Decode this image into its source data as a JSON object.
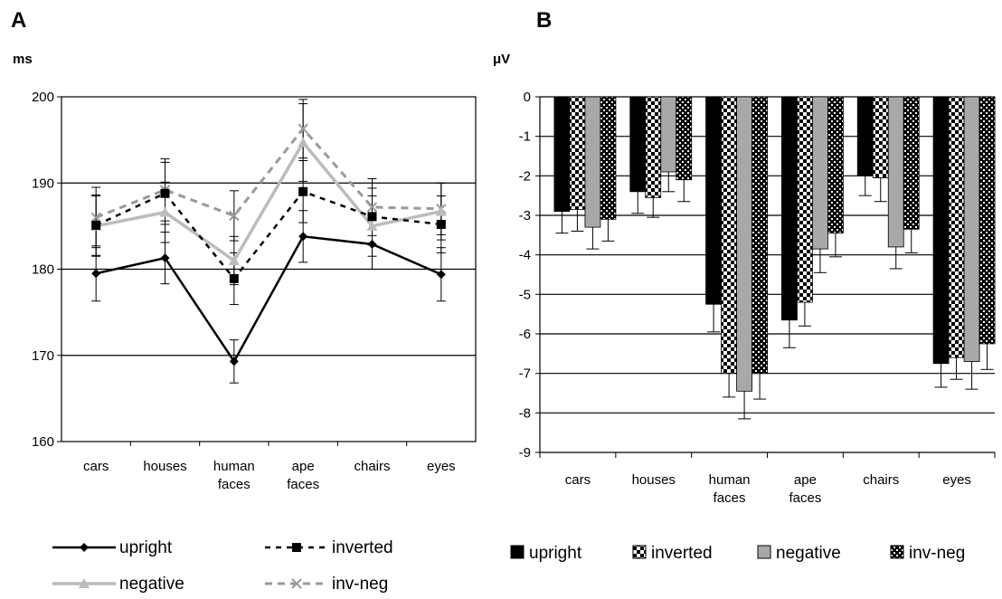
{
  "chart_data": [
    {
      "type": "line",
      "panel_label": "A",
      "unit_label": "ms",
      "categories": [
        "cars",
        "houses",
        "human faces",
        "ape faces",
        "chairs",
        "eyes"
      ],
      "ylim": [
        160,
        200
      ],
      "y_ticks": [
        "160",
        "170",
        "180",
        "190",
        "200"
      ],
      "grid": true,
      "legend_placement": "bottom",
      "series": [
        {
          "name": "upright",
          "values": [
            179.5,
            181.3,
            169.3,
            183.8,
            182.9,
            179.4
          ],
          "errors": [
            3.2,
            3.0,
            2.5,
            3.0,
            2.9,
            3.1
          ],
          "color": "#000000"
        },
        {
          "name": "inverted",
          "values": [
            185.1,
            188.8,
            178.9,
            189.0,
            186.1,
            185.2
          ],
          "errors": [
            3.5,
            3.6,
            3.0,
            3.6,
            3.3,
            3.3
          ],
          "color": "#000000"
        },
        {
          "name": "negative",
          "values": [
            185.0,
            186.6,
            181.0,
            194.7,
            185.0,
            186.7
          ],
          "errors": [
            3.5,
            3.5,
            2.8,
            4.5,
            3.5,
            3.3
          ],
          "color": "#bcbcbc"
        },
        {
          "name": "inv-neg",
          "values": [
            186.0,
            189.2,
            186.2,
            196.3,
            187.2,
            187.0
          ],
          "errors": [
            3.5,
            3.6,
            2.9,
            3.4,
            3.3,
            3.0
          ],
          "color": "#9a9a9a"
        }
      ]
    },
    {
      "type": "bar",
      "panel_label": "B",
      "unit_label": "μV",
      "categories": [
        "cars",
        "houses",
        "human faces",
        "ape faces",
        "chairs",
        "eyes"
      ],
      "ylim": [
        -9,
        0
      ],
      "y_ticks": [
        "0",
        "-1",
        "-2",
        "-3",
        "-4",
        "-5",
        "-6",
        "-7",
        "-8",
        "-9"
      ],
      "grid": true,
      "legend_placement": "bottom",
      "series": [
        {
          "name": "upright",
          "values": [
            -2.9,
            -2.4,
            -5.25,
            -5.65,
            -2.0,
            -6.75
          ],
          "errors": [
            0.55,
            0.55,
            0.7,
            0.7,
            0.5,
            0.6
          ],
          "color": "#000000"
        },
        {
          "name": "inverted",
          "values": [
            -2.85,
            -2.55,
            -7.0,
            -5.2,
            -2.05,
            -6.6
          ],
          "errors": [
            0.55,
            0.5,
            0.6,
            0.6,
            0.6,
            0.55
          ],
          "color": "#ffffff"
        },
        {
          "name": "negative",
          "values": [
            -3.3,
            -1.9,
            -7.45,
            -3.85,
            -3.8,
            -6.7
          ],
          "errors": [
            0.55,
            0.5,
            0.7,
            0.6,
            0.55,
            0.7
          ],
          "color": "#a8a8a8"
        },
        {
          "name": "inv-neg",
          "values": [
            -3.1,
            -2.1,
            -7.0,
            -3.45,
            -3.35,
            -6.25
          ],
          "errors": [
            0.55,
            0.55,
            0.65,
            0.6,
            0.6,
            0.65
          ],
          "color": "#333333"
        }
      ]
    }
  ]
}
